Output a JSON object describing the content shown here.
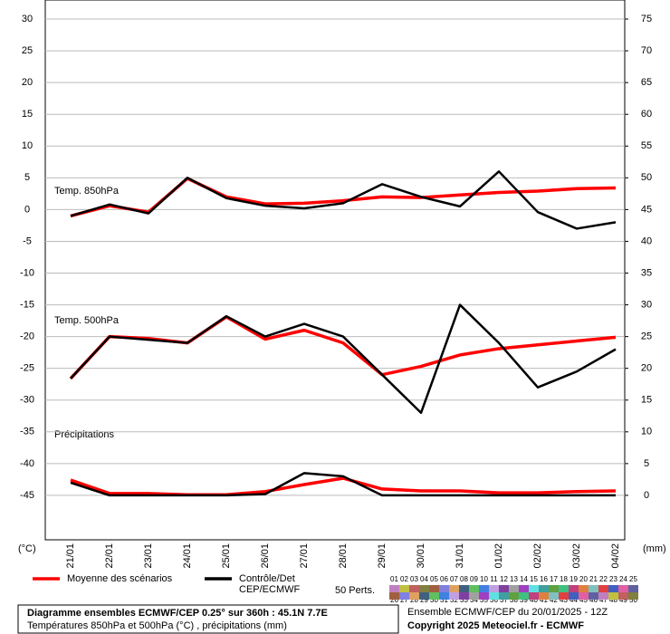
{
  "chart_data": {
    "type": "line",
    "title": "Diagramme ensembles ECMWF/CEP 0.25° sur 360h : 45.1N 7.7E",
    "subtitle": "Températures 850hPa et 500hPa (°C) , précipitations (mm)",
    "run_label": "Ensemble ECMWF/CEP du 20/01/2025 - 12Z",
    "copyright": "Copyright 2025 Meteociel.fr - ECMWF",
    "ylabel": "(°C)",
    "y2label": "(mm)",
    "panel_labels": [
      "Temp. 850hPa",
      "Temp. 500hPa",
      "Précipitations"
    ],
    "perturbations_label": "50 Perts.",
    "perturbations": [
      "01",
      "02",
      "03",
      "04",
      "05",
      "06",
      "07",
      "08",
      "09",
      "10",
      "11",
      "12",
      "13",
      "14",
      "15",
      "16",
      "17",
      "18",
      "19",
      "20",
      "21",
      "22",
      "23",
      "24",
      "25",
      "26",
      "27",
      "28",
      "29",
      "30",
      "31",
      "32",
      "33",
      "34",
      "35",
      "36",
      "37",
      "38",
      "39",
      "40",
      "41",
      "42",
      "43",
      "44",
      "45",
      "46",
      "47",
      "48",
      "49",
      "50"
    ],
    "categories": [
      "21/01",
      "22/01",
      "23/01",
      "24/01",
      "25/01",
      "26/01",
      "27/01",
      "28/01",
      "29/01",
      "30/01",
      "31/01",
      "01/02",
      "02/02",
      "03/02",
      "04/02"
    ],
    "ylim": [
      -52,
      33
    ],
    "yticks": [
      30,
      25,
      20,
      15,
      10,
      5,
      0,
      -5,
      -10,
      -15,
      -20,
      -25,
      -30,
      -35,
      -40,
      -45
    ],
    "y2lim": [
      -7,
      78
    ],
    "y2ticks": [
      75,
      70,
      65,
      60,
      55,
      50,
      45,
      40,
      35,
      30,
      25,
      20,
      15,
      10,
      5,
      0
    ],
    "grid": true,
    "series": [
      {
        "name": "Moyenne des scénarios",
        "color": "#ff0000",
        "values": [
          -1,
          0.6,
          -0.4,
          4.9,
          2,
          0.9,
          1,
          1.4,
          2,
          1.9,
          2.3,
          2.7,
          2.9,
          3.3,
          3.4
        ]
      },
      {
        "name": "Contrôle/Det CEP/ECMWF",
        "color": "#000000",
        "values": [
          -1,
          0.8,
          -0.6,
          5,
          1.8,
          0.6,
          0.2,
          1,
          4,
          2,
          0.5,
          6,
          -0.4,
          -3,
          -2
        ]
      },
      {
        "name": "Moyenne des scénarios",
        "color": "#ff0000",
        "values": [
          -26.6,
          -20,
          -20.3,
          -21,
          -16.9,
          -20.4,
          -19,
          -21,
          -26,
          -24.7,
          -22.9,
          -21.9,
          -21.3,
          -20.7,
          -20.1
        ]
      },
      {
        "name": "Contrôle/Det CEP/ECMWF",
        "color": "#000000",
        "values": [
          -26.6,
          -20,
          -20.5,
          -21,
          -16.8,
          -20,
          -18,
          -20,
          -26,
          -32,
          -15,
          -21,
          -28,
          -25.5,
          -22
        ]
      },
      {
        "name": "Moyenne des scénarios",
        "color": "#ff0000",
        "axis": "y2",
        "values": [
          2.4,
          0.3,
          0.3,
          0.1,
          0.1,
          0.6,
          1.7,
          2.7,
          1,
          0.7,
          0.7,
          0.4,
          0.4,
          0.6,
          0.7
        ]
      },
      {
        "name": "Contrôle/Det CEP/ECMWF",
        "color": "#000000",
        "axis": "y2",
        "values": [
          2,
          0,
          0,
          0,
          0,
          0.2,
          3.5,
          3,
          0,
          0,
          0,
          0,
          0,
          0,
          0
        ]
      }
    ]
  }
}
